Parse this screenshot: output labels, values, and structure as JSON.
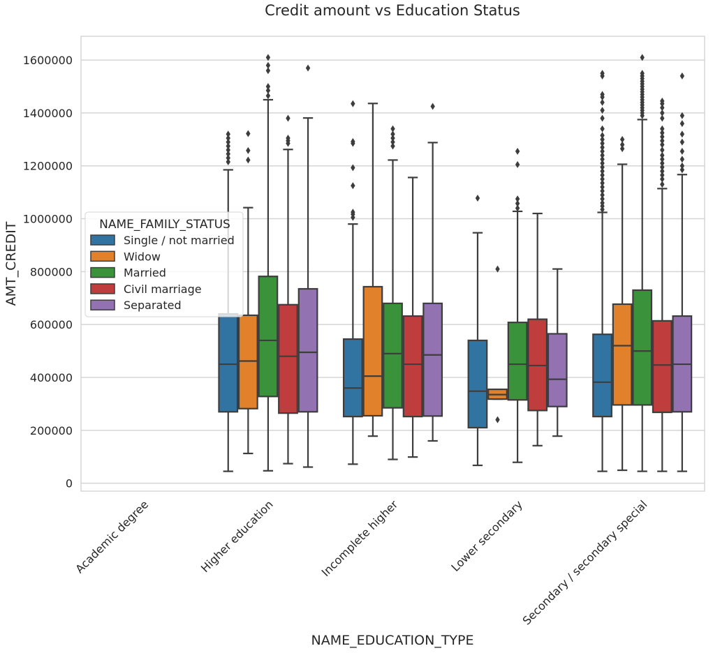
{
  "chart_data": {
    "type": "box",
    "title": "Credit amount vs Education Status",
    "xlabel": "NAME_EDUCATION_TYPE",
    "ylabel": "AMT_CREDIT",
    "ylim": [
      -30000,
      1690000
    ],
    "yticks": [
      0,
      200000,
      400000,
      600000,
      800000,
      1000000,
      1200000,
      1400000,
      1600000
    ],
    "ytick_labels": [
      "0",
      "200000",
      "400000",
      "600000",
      "800000",
      "1000000",
      "1200000",
      "1400000",
      "1600000"
    ],
    "grid": true,
    "legend": {
      "title": "NAME_FAMILY_STATUS",
      "placement": "center-left",
      "entries": [
        "Single / not married",
        "Widow",
        "Married",
        "Civil marriage",
        "Separated"
      ]
    },
    "colors": {
      "Single / not married": "#3274a1",
      "Widow": "#e1812c",
      "Married": "#3a923a",
      "Civil marriage": "#c03d3e",
      "Separated": "#9372b2",
      "line": "#3d3d3d",
      "grid": "#d5d5d5"
    },
    "categories": [
      "Academic degree",
      "Higher education",
      "Incomplete higher",
      "Lower secondary",
      "Secondary / secondary special"
    ],
    "series": [
      {
        "name": "Single / not married",
        "boxes": [
          null,
          {
            "whislo": 45000,
            "q1": 270000,
            "med": 450000,
            "q3": 640000,
            "whishi": 1185000,
            "fliers": [
              1215000,
              1230000,
              1245000,
              1260000,
              1275000,
              1290000,
              1305000,
              1320000
            ]
          },
          {
            "whislo": 72000,
            "q1": 252000,
            "med": 360000,
            "q3": 545000,
            "whishi": 980000,
            "fliers": [
              1005000,
              1017000,
              1025000,
              1125000,
              1193000,
              1285000,
              1292000,
              1435000
            ]
          },
          {
            "whislo": 67500,
            "q1": 210000,
            "med": 348000,
            "q3": 540000,
            "whishi": 947000,
            "fliers": [
              1078000
            ]
          },
          {
            "whislo": 45000,
            "q1": 252000,
            "med": 382000,
            "q3": 563000,
            "whishi": 1024000,
            "fliers": [
              1035000,
              1048000,
              1060000,
              1075000,
              1090000,
              1105000,
              1120000,
              1135000,
              1150000,
              1165000,
              1180000,
              1195000,
              1210000,
              1225000,
              1240000,
              1255000,
              1270000,
              1285000,
              1300000,
              1315000,
              1340000,
              1380000,
              1410000,
              1440000,
              1460000,
              1470000,
              1540000,
              1550000
            ]
          }
        ]
      },
      {
        "name": "Widow",
        "boxes": [
          null,
          {
            "whislo": 112500,
            "q1": 282000,
            "med": 462000,
            "q3": 635000,
            "whishi": 1042000,
            "fliers": [
              1222000,
              1258000,
              1322000
            ]
          },
          {
            "whislo": 178000,
            "q1": 255000,
            "med": 405000,
            "q3": 743000,
            "whishi": 1436000,
            "fliers": []
          },
          {
            "whislo": 318000,
            "q1": 318000,
            "med": 335000,
            "q3": 355000,
            "whishi": 355000,
            "fliers": [
              240000,
              810000
            ]
          },
          {
            "whislo": 49000,
            "q1": 296000,
            "med": 520000,
            "q3": 677000,
            "whishi": 1206000,
            "fliers": [
              1265000,
              1280000,
              1300000
            ]
          }
        ]
      },
      {
        "name": "Married",
        "boxes": [
          null,
          {
            "whislo": 47000,
            "q1": 328000,
            "med": 540000,
            "q3": 782000,
            "whishi": 1450000,
            "fliers": [
              1465000,
              1485000,
              1500000,
              1560000,
              1580000,
              1610000
            ]
          },
          {
            "whislo": 90000,
            "q1": 285000,
            "med": 490000,
            "q3": 680000,
            "whishi": 1222000,
            "fliers": [
              1275000,
              1290000,
              1305000,
              1320000,
              1340000
            ]
          },
          {
            "whislo": 79000,
            "q1": 315000,
            "med": 450000,
            "q3": 608000,
            "whishi": 1028000,
            "fliers": [
              1040000,
              1058000,
              1075000,
              1205000,
              1255000
            ]
          },
          {
            "whislo": 45000,
            "q1": 296000,
            "med": 500000,
            "q3": 730000,
            "whishi": 1375000,
            "fliers": [
              1390000,
              1400000,
              1410000,
              1420000,
              1430000,
              1440000,
              1450000,
              1460000,
              1470000,
              1480000,
              1490000,
              1500000,
              1510000,
              1520000,
              1530000,
              1540000,
              1550000,
              1610000
            ]
          }
        ]
      },
      {
        "name": "Civil marriage",
        "boxes": [
          null,
          {
            "whislo": 74000,
            "q1": 265000,
            "med": 480000,
            "q3": 675000,
            "whishi": 1262000,
            "fliers": [
              1285000,
              1295000,
              1305000,
              1380000
            ]
          },
          {
            "whislo": 99000,
            "q1": 252000,
            "med": 450000,
            "q3": 632000,
            "whishi": 1156000,
            "fliers": []
          },
          {
            "whislo": 142000,
            "q1": 275000,
            "med": 445000,
            "q3": 620000,
            "whishi": 1020000,
            "fliers": []
          },
          {
            "whislo": 45000,
            "q1": 268000,
            "med": 447000,
            "q3": 614000,
            "whishi": 1114000,
            "fliers": [
              1130000,
              1150000,
              1165000,
              1180000,
              1195000,
              1210000,
              1225000,
              1240000,
              1260000,
              1280000,
              1295000,
              1310000,
              1325000,
              1340000,
              1380000,
              1400000,
              1420000,
              1435000,
              1445000
            ]
          }
        ]
      },
      {
        "name": "Separated",
        "boxes": [
          null,
          {
            "whislo": 61000,
            "q1": 270000,
            "med": 495000,
            "q3": 735000,
            "whishi": 1381000,
            "fliers": [
              1570000
            ]
          },
          {
            "whislo": 160000,
            "q1": 254000,
            "med": 485000,
            "q3": 680000,
            "whishi": 1288000,
            "fliers": [
              1425000
            ]
          },
          {
            "whislo": 178000,
            "q1": 290000,
            "med": 393000,
            "q3": 565000,
            "whishi": 810000,
            "fliers": []
          },
          {
            "whislo": 45000,
            "q1": 270000,
            "med": 450000,
            "q3": 632000,
            "whishi": 1167000,
            "fliers": [
              1185000,
              1200000,
              1225000,
              1255000,
              1290000,
              1320000,
              1360000,
              1390000,
              1540000
            ]
          }
        ]
      }
    ]
  }
}
